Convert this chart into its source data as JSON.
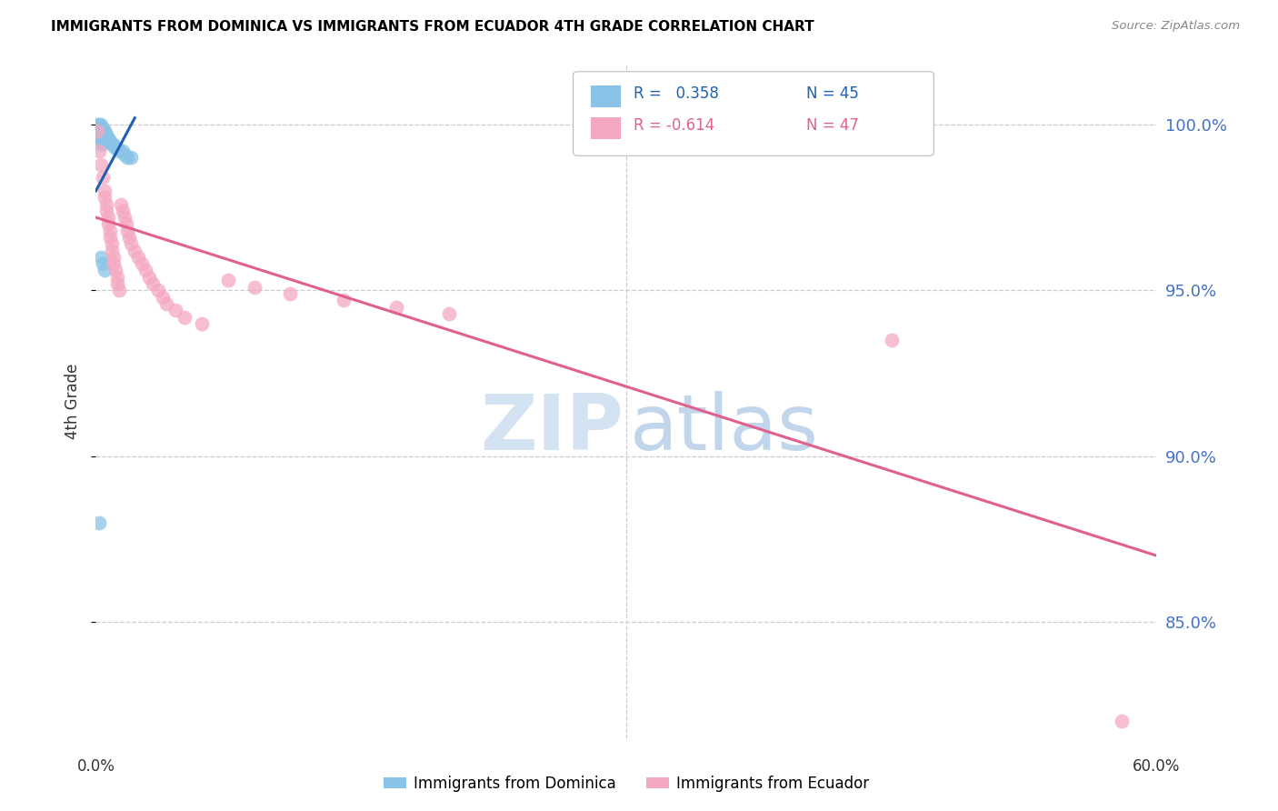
{
  "title": "IMMIGRANTS FROM DOMINICA VS IMMIGRANTS FROM ECUADOR 4TH GRADE CORRELATION CHART",
  "source": "Source: ZipAtlas.com",
  "ylabel": "4th Grade",
  "ytick_labels": [
    "100.0%",
    "95.0%",
    "90.0%",
    "85.0%"
  ],
  "ytick_values": [
    1.0,
    0.95,
    0.9,
    0.85
  ],
  "xmin": 0.0,
  "xmax": 0.6,
  "ymin": 0.815,
  "ymax": 1.018,
  "dominica_color": "#89c4e8",
  "ecuador_color": "#f4a8c0",
  "dominica_line_color": "#2060b0",
  "ecuador_line_color": "#e06090",
  "legend_R_dominica": " 0.358",
  "legend_N_dominica": "45",
  "legend_R_ecuador": "-0.614",
  "legend_N_ecuador": "47",
  "legend_label_dominica": "Immigrants from Dominica",
  "legend_label_ecuador": "Immigrants from Ecuador",
  "dominica_x": [
    0.001,
    0.001,
    0.001,
    0.001,
    0.001,
    0.002,
    0.002,
    0.002,
    0.002,
    0.002,
    0.002,
    0.003,
    0.003,
    0.003,
    0.003,
    0.003,
    0.003,
    0.003,
    0.004,
    0.004,
    0.004,
    0.004,
    0.004,
    0.005,
    0.005,
    0.005,
    0.006,
    0.006,
    0.006,
    0.007,
    0.007,
    0.008,
    0.009,
    0.01,
    0.011,
    0.012,
    0.013,
    0.015,
    0.016,
    0.018,
    0.02,
    0.003,
    0.004,
    0.005,
    0.002
  ],
  "dominica_y": [
    1.0,
    0.999,
    0.998,
    0.997,
    0.996,
    1.0,
    0.999,
    0.998,
    0.997,
    0.996,
    0.995,
    1.0,
    0.999,
    0.998,
    0.997,
    0.996,
    0.995,
    0.994,
    0.999,
    0.998,
    0.997,
    0.996,
    0.995,
    0.998,
    0.997,
    0.996,
    0.997,
    0.996,
    0.995,
    0.996,
    0.995,
    0.995,
    0.994,
    0.994,
    0.993,
    0.993,
    0.992,
    0.992,
    0.991,
    0.99,
    0.99,
    0.96,
    0.958,
    0.956,
    0.88
  ],
  "ecuador_x": [
    0.001,
    0.002,
    0.003,
    0.004,
    0.005,
    0.005,
    0.006,
    0.006,
    0.007,
    0.007,
    0.008,
    0.008,
    0.009,
    0.009,
    0.01,
    0.01,
    0.011,
    0.012,
    0.012,
    0.013,
    0.014,
    0.015,
    0.016,
    0.017,
    0.018,
    0.019,
    0.02,
    0.022,
    0.024,
    0.026,
    0.028,
    0.03,
    0.032,
    0.035,
    0.038,
    0.04,
    0.045,
    0.05,
    0.06,
    0.075,
    0.09,
    0.11,
    0.14,
    0.17,
    0.2,
    0.45,
    0.58
  ],
  "ecuador_y": [
    0.998,
    0.992,
    0.988,
    0.984,
    0.98,
    0.978,
    0.976,
    0.974,
    0.972,
    0.97,
    0.968,
    0.966,
    0.964,
    0.962,
    0.96,
    0.958,
    0.956,
    0.954,
    0.952,
    0.95,
    0.976,
    0.974,
    0.972,
    0.97,
    0.968,
    0.966,
    0.964,
    0.962,
    0.96,
    0.958,
    0.956,
    0.954,
    0.952,
    0.95,
    0.948,
    0.946,
    0.944,
    0.942,
    0.94,
    0.953,
    0.951,
    0.949,
    0.947,
    0.945,
    0.943,
    0.935,
    0.82
  ],
  "dominica_line_x": [
    0.0,
    0.022
  ],
  "dominica_line_y": [
    0.98,
    1.002
  ],
  "ecuador_line_x": [
    0.0,
    0.6
  ],
  "ecuador_line_y": [
    0.972,
    0.87
  ]
}
